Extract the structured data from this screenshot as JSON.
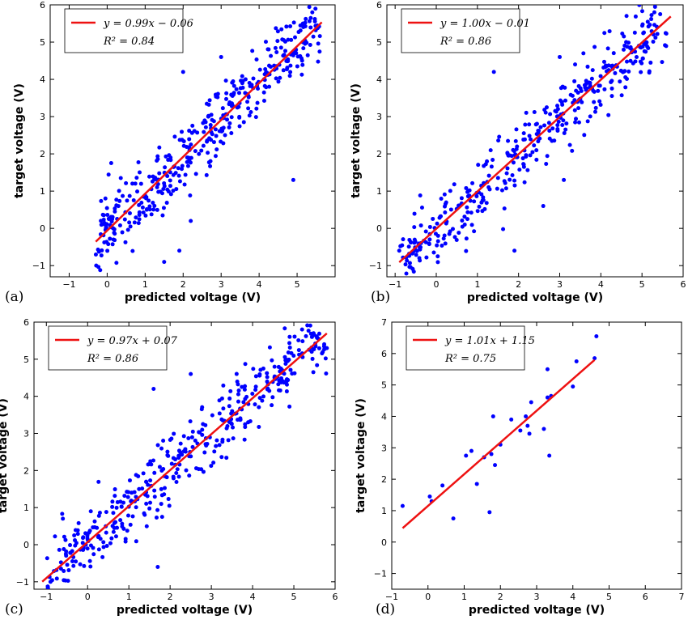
{
  "chart_data": [
    {
      "panel_label": "(a)",
      "type": "scatter",
      "xlabel": "predicted voltage (V)",
      "ylabel": "target voltage (V)",
      "xlim": [
        -1.5,
        6
      ],
      "ylim": [
        -1.3,
        6
      ],
      "xticks": [
        -1,
        0,
        1,
        2,
        3,
        4,
        5
      ],
      "yticks": [
        -1,
        0,
        1,
        2,
        3,
        4,
        5,
        6
      ],
      "legend": {
        "fit_label": "y = 0.99x − 0.06",
        "r2_label": "R² = 0.84",
        "position": "upper-left"
      },
      "fit": {
        "slope": 0.99,
        "intercept": -0.06,
        "x_range": [
          -0.3,
          5.65
        ]
      },
      "colors": {
        "points": "#0000ff",
        "line": "#ee1111"
      },
      "n_points": 400,
      "x_range": [
        -0.3,
        5.6
      ],
      "noise": 0.48,
      "seed": 11,
      "outliers": [
        [
          1.5,
          -0.9
        ],
        [
          4.9,
          1.3
        ],
        [
          2.0,
          4.2
        ],
        [
          1.9,
          -0.6
        ],
        [
          3.0,
          4.6
        ],
        [
          5.4,
          5.8
        ],
        [
          2.2,
          0.2
        ]
      ]
    },
    {
      "panel_label": "(b)",
      "type": "scatter",
      "xlabel": "predicted voltage (V)",
      "ylabel": "target voltage (V)",
      "xlim": [
        -1.2,
        6
      ],
      "ylim": [
        -1.3,
        6
      ],
      "xticks": [
        -1,
        0,
        1,
        2,
        3,
        4,
        5,
        6
      ],
      "yticks": [
        -1,
        0,
        1,
        2,
        3,
        4,
        5,
        6
      ],
      "legend": {
        "fit_label": "y = 1.00x − 0.01",
        "r2_label": "R² = 0.86",
        "position": "upper-left"
      },
      "fit": {
        "slope": 1.0,
        "intercept": -0.01,
        "x_range": [
          -0.9,
          5.7
        ]
      },
      "colors": {
        "points": "#0000ff",
        "line": "#ee1111"
      },
      "n_points": 400,
      "x_range": [
        -0.9,
        5.6
      ],
      "noise": 0.45,
      "seed": 23,
      "outliers": [
        [
          1.4,
          4.2
        ],
        [
          3.0,
          4.6
        ],
        [
          1.9,
          -0.6
        ],
        [
          3.1,
          1.3
        ],
        [
          5.3,
          5.8
        ],
        [
          2.6,
          0.6
        ],
        [
          -0.9,
          -0.6
        ]
      ]
    },
    {
      "panel_label": "(c)",
      "type": "scatter",
      "xlabel": "predicted voltage (V)",
      "ylabel": "target voltage (V)",
      "xlim": [
        -1.3,
        6
      ],
      "ylim": [
        -1.2,
        6
      ],
      "xticks": [
        -1,
        0,
        1,
        2,
        3,
        4,
        5,
        6
      ],
      "yticks": [
        -1,
        0,
        1,
        2,
        3,
        4,
        5,
        6
      ],
      "legend": {
        "fit_label": "y = 0.97x + 0.07",
        "r2_label": "R² = 0.86",
        "position": "upper-left"
      },
      "fit": {
        "slope": 0.97,
        "intercept": 0.07,
        "x_range": [
          -1.1,
          5.8
        ]
      },
      "colors": {
        "points": "#0000ff",
        "line": "#ee1111"
      },
      "n_points": 400,
      "x_range": [
        -1.0,
        5.8
      ],
      "noise": 0.45,
      "seed": 37,
      "outliers": [
        [
          1.6,
          4.2
        ],
        [
          2.5,
          4.6
        ],
        [
          1.7,
          -0.6
        ],
        [
          -0.6,
          0.7
        ],
        [
          5.8,
          5.3
        ],
        [
          5.2,
          5.8
        ],
        [
          -0.9,
          -1.0
        ]
      ]
    },
    {
      "panel_label": "(d)",
      "type": "scatter",
      "xlabel": "predicted voltage (V)",
      "ylabel": "target voltage (V)",
      "xlim": [
        -1,
        7
      ],
      "ylim": [
        -1.5,
        7
      ],
      "xticks": [
        -1,
        0,
        1,
        2,
        3,
        4,
        5,
        6,
        7
      ],
      "yticks": [
        -1,
        0,
        1,
        2,
        3,
        4,
        5,
        6,
        7
      ],
      "legend": {
        "fit_label": "y = 1.01x + 1.15",
        "r2_label": "R² = 0.75",
        "position": "upper-left"
      },
      "fit": {
        "slope": 1.01,
        "intercept": 1.15,
        "x_range": [
          -0.7,
          4.6
        ]
      },
      "colors": {
        "points": "#0000ff",
        "line": "#ee1111"
      },
      "points": [
        [
          -0.7,
          1.15
        ],
        [
          0.05,
          1.45
        ],
        [
          0.1,
          1.3
        ],
        [
          0.4,
          1.8
        ],
        [
          0.7,
          0.75
        ],
        [
          1.05,
          2.75
        ],
        [
          1.2,
          2.9
        ],
        [
          1.35,
          1.85
        ],
        [
          1.55,
          2.7
        ],
        [
          1.7,
          0.95
        ],
        [
          1.75,
          2.8
        ],
        [
          1.8,
          4.0
        ],
        [
          1.85,
          2.45
        ],
        [
          2.0,
          3.1
        ],
        [
          2.3,
          3.9
        ],
        [
          2.45,
          5.55
        ],
        [
          2.55,
          3.55
        ],
        [
          2.7,
          4.0
        ],
        [
          2.75,
          3.7
        ],
        [
          2.85,
          4.45
        ],
        [
          2.8,
          3.45
        ],
        [
          3.2,
          3.6
        ],
        [
          3.3,
          4.6
        ],
        [
          3.3,
          5.5
        ],
        [
          3.35,
          2.75
        ],
        [
          3.4,
          4.65
        ],
        [
          4.0,
          4.95
        ],
        [
          4.1,
          5.75
        ],
        [
          4.6,
          5.85
        ],
        [
          4.65,
          6.55
        ]
      ]
    }
  ]
}
